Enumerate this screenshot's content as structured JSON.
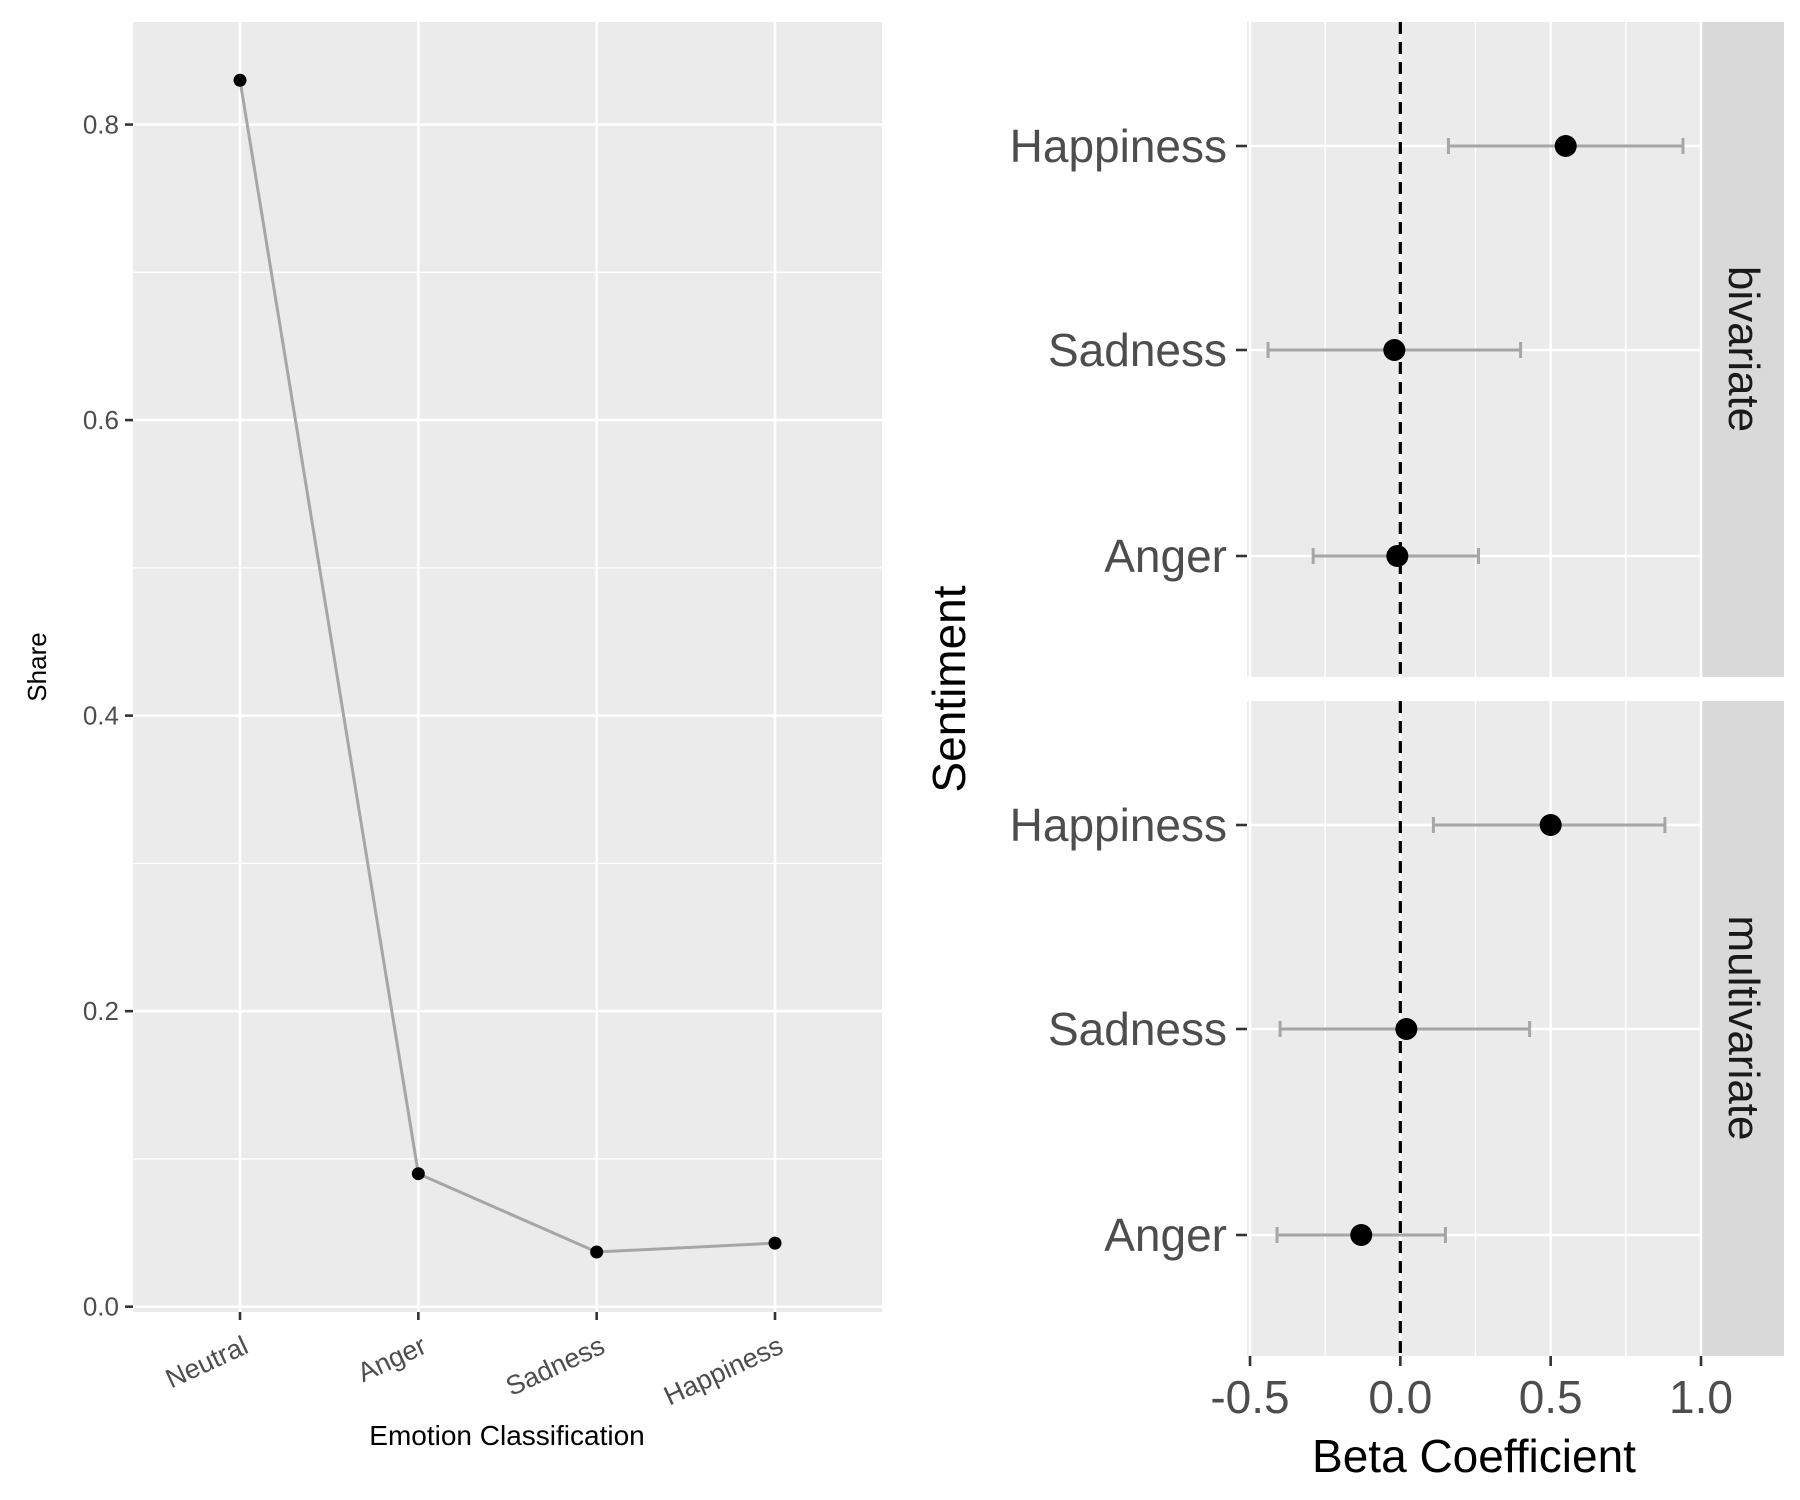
{
  "chart_data": [
    {
      "type": "line",
      "xlabel": "Emotion Classification",
      "ylabel": "Share",
      "categories": [
        "Neutral",
        "Anger",
        "Sadness",
        "Happiness"
      ],
      "values": [
        0.83,
        0.09,
        0.037,
        0.043
      ],
      "ylim": [
        -0.0036,
        0.8694
      ],
      "yticks": [
        0.0,
        0.2,
        0.4,
        0.6,
        0.8
      ],
      "ytick_labels": [
        "0.0",
        "0.2",
        "0.4",
        "0.6",
        "0.8"
      ],
      "line_color": "#a6a6a6",
      "point_color": "#000000",
      "grid": true
    },
    {
      "type": "scatter",
      "xlabel": "Beta Coefficient",
      "ylabel": "Sentiment",
      "categories": [
        "Happiness",
        "Sadness",
        "Anger"
      ],
      "xlim": [
        -0.51,
        1.0
      ],
      "xticks": [
        -0.5,
        0.0,
        0.5,
        1.0
      ],
      "xtick_labels": [
        "-0.5",
        "0.0",
        "0.5",
        "1.0"
      ],
      "reference_line": 0.0,
      "facets": [
        {
          "label": "bivariate",
          "points": [
            {
              "category": "Happiness",
              "estimate": 0.55,
              "low": 0.16,
              "high": 0.94
            },
            {
              "category": "Sadness",
              "estimate": -0.02,
              "low": -0.44,
              "high": 0.4
            },
            {
              "category": "Anger",
              "estimate": -0.01,
              "low": -0.29,
              "high": 0.26
            }
          ]
        },
        {
          "label": "multivariate",
          "points": [
            {
              "category": "Happiness",
              "estimate": 0.5,
              "low": 0.11,
              "high": 0.88
            },
            {
              "category": "Sadness",
              "estimate": 0.02,
              "low": -0.4,
              "high": 0.43
            },
            {
              "category": "Anger",
              "estimate": -0.13,
              "low": -0.41,
              "high": 0.15
            }
          ]
        }
      ],
      "point_color": "#000000",
      "errorbar_color": "#a6a6a6",
      "grid": true
    }
  ]
}
